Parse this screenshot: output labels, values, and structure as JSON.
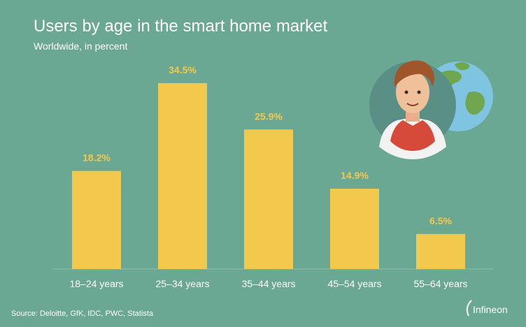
{
  "header": {
    "title": "Users by age in the smart home market",
    "subtitle": "Worldwide, in percent"
  },
  "footer": {
    "source": "Source: Deloitte, GfK, IDC, PWC, Statista",
    "logo_text": "Infineon"
  },
  "colors": {
    "background": "#6aa894",
    "bar": "#f2c94c",
    "label": "#f2c94c"
  },
  "chart_data": {
    "type": "bar",
    "title": "Users by age in the smart home market",
    "subtitle": "Worldwide, in percent",
    "categories": [
      "18–24 years",
      "25–34 years",
      "35–44 years",
      "45–54 years",
      "55–64 years"
    ],
    "values": [
      18.2,
      34.5,
      25.9,
      14.9,
      6.5
    ],
    "value_labels": [
      "18.2%",
      "34.5%",
      "25.9%",
      "14.9%",
      "6.5%"
    ],
    "ylim": [
      0,
      34.5
    ],
    "grid": false,
    "legend": "none"
  }
}
